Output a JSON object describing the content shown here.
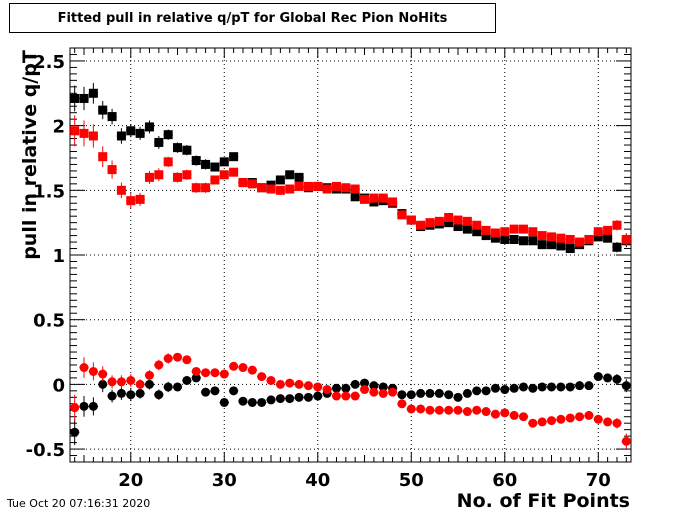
{
  "title": "Fitted pull in relative q/pT for Global Rec Pion NoHits",
  "datestamp": "Tue Oct 20 07:16:31 2020",
  "colors": {
    "series_black": "#000000",
    "series_red": "#ff0000"
  },
  "chart_data": {
    "type": "scatter",
    "title": "Fitted pull in relative q/pT for Global Rec Pion NoHits",
    "xlabel": "No. of Fit Points",
    "ylabel": "pull in relative q/pT",
    "xlim": [
      13.5,
      73.5
    ],
    "ylim": [
      -0.6,
      2.6
    ],
    "xticks": [
      20,
      30,
      40,
      50,
      60,
      70
    ],
    "yticks": [
      -0.5,
      0,
      0.5,
      1,
      1.5,
      2,
      2.5
    ],
    "grid": true,
    "x": [
      14,
      15,
      16,
      17,
      18,
      19,
      20,
      21,
      22,
      23,
      24,
      25,
      26,
      27,
      28,
      29,
      30,
      31,
      32,
      33,
      34,
      35,
      36,
      37,
      38,
      39,
      40,
      41,
      42,
      43,
      44,
      45,
      46,
      47,
      48,
      49,
      50,
      51,
      52,
      53,
      54,
      55,
      56,
      57,
      58,
      59,
      60,
      61,
      62,
      63,
      64,
      65,
      66,
      67,
      68,
      69,
      70,
      71,
      72,
      73
    ],
    "series": [
      {
        "color": "#000000",
        "marker": "square",
        "values": [
          2.21,
          2.21,
          2.25,
          2.12,
          2.07,
          1.92,
          1.96,
          1.94,
          1.99,
          1.87,
          1.93,
          1.83,
          1.81,
          1.73,
          1.7,
          1.68,
          1.72,
          1.76,
          1.56,
          1.56,
          1.52,
          1.54,
          1.58,
          1.62,
          1.6,
          1.52,
          1.53,
          1.52,
          1.51,
          1.51,
          1.45,
          1.44,
          1.41,
          1.42,
          1.4,
          1.32,
          1.27,
          1.22,
          1.23,
          1.24,
          1.25,
          1.22,
          1.2,
          1.18,
          1.15,
          1.13,
          1.12,
          1.12,
          1.11,
          1.11,
          1.08,
          1.08,
          1.07,
          1.05,
          1.08,
          1.11,
          1.14,
          1.13,
          1.06,
          1.11
        ],
        "errors": [
          0.1,
          0.09,
          0.08,
          0.07,
          0.06,
          0.06,
          0.05,
          0.05,
          0.05,
          0.05,
          0.04,
          0.04,
          0.04,
          0.04,
          0.04,
          0.03,
          0.03,
          0.03,
          0.03,
          0.03,
          0.03,
          0.03,
          0.03,
          0.03,
          0.03,
          0.02,
          0.02,
          0.02,
          0.02,
          0.02,
          0.02,
          0.02,
          0.02,
          0.02,
          0.02,
          0.02,
          0.02,
          0.02,
          0.02,
          0.02,
          0.02,
          0.02,
          0.02,
          0.02,
          0.02,
          0.02,
          0.02,
          0.02,
          0.02,
          0.02,
          0.02,
          0.02,
          0.02,
          0.02,
          0.02,
          0.02,
          0.03,
          0.03,
          0.04,
          0.05
        ]
      },
      {
        "color": "#ff0000",
        "marker": "square",
        "values": [
          1.96,
          1.94,
          1.92,
          1.76,
          1.66,
          1.5,
          1.42,
          1.43,
          1.6,
          1.62,
          1.72,
          1.6,
          1.62,
          1.52,
          1.52,
          1.58,
          1.62,
          1.64,
          1.56,
          1.55,
          1.52,
          1.51,
          1.5,
          1.51,
          1.53,
          1.53,
          1.53,
          1.51,
          1.53,
          1.52,
          1.51,
          1.43,
          1.44,
          1.44,
          1.41,
          1.31,
          1.27,
          1.23,
          1.25,
          1.26,
          1.29,
          1.27,
          1.26,
          1.23,
          1.19,
          1.17,
          1.18,
          1.2,
          1.2,
          1.18,
          1.15,
          1.14,
          1.13,
          1.12,
          1.1,
          1.12,
          1.18,
          1.19,
          1.23,
          1.12
        ],
        "errors": [
          0.12,
          0.1,
          0.09,
          0.08,
          0.07,
          0.06,
          0.06,
          0.05,
          0.05,
          0.05,
          0.04,
          0.04,
          0.04,
          0.04,
          0.04,
          0.03,
          0.03,
          0.03,
          0.03,
          0.03,
          0.03,
          0.03,
          0.03,
          0.03,
          0.03,
          0.02,
          0.02,
          0.02,
          0.02,
          0.02,
          0.02,
          0.02,
          0.02,
          0.02,
          0.02,
          0.02,
          0.02,
          0.02,
          0.02,
          0.02,
          0.02,
          0.02,
          0.02,
          0.02,
          0.02,
          0.02,
          0.02,
          0.02,
          0.02,
          0.02,
          0.02,
          0.02,
          0.02,
          0.02,
          0.02,
          0.02,
          0.03,
          0.03,
          0.04,
          0.05
        ]
      },
      {
        "color": "#000000",
        "marker": "circle",
        "values": [
          -0.37,
          -0.17,
          -0.17,
          0.0,
          -0.09,
          -0.07,
          -0.08,
          -0.07,
          0.0,
          -0.08,
          -0.02,
          -0.02,
          0.03,
          0.05,
          -0.06,
          -0.05,
          -0.14,
          -0.05,
          -0.13,
          -0.14,
          -0.14,
          -0.12,
          -0.11,
          -0.11,
          -0.1,
          -0.1,
          -0.09,
          -0.07,
          -0.03,
          -0.03,
          0.0,
          0.01,
          -0.01,
          -0.02,
          -0.03,
          -0.08,
          -0.08,
          -0.07,
          -0.07,
          -0.07,
          -0.08,
          -0.1,
          -0.07,
          -0.05,
          -0.05,
          -0.03,
          -0.04,
          -0.03,
          -0.02,
          -0.03,
          -0.02,
          -0.02,
          -0.02,
          -0.02,
          -0.01,
          -0.01,
          0.06,
          0.05,
          0.04,
          -0.01
        ],
        "errors": [
          0.1,
          0.08,
          0.07,
          0.06,
          0.05,
          0.05,
          0.05,
          0.04,
          0.04,
          0.04,
          0.04,
          0.03,
          0.03,
          0.03,
          0.03,
          0.03,
          0.03,
          0.03,
          0.03,
          0.02,
          0.02,
          0.02,
          0.02,
          0.02,
          0.02,
          0.02,
          0.02,
          0.02,
          0.02,
          0.02,
          0.02,
          0.02,
          0.02,
          0.02,
          0.02,
          0.02,
          0.02,
          0.02,
          0.02,
          0.02,
          0.02,
          0.02,
          0.02,
          0.02,
          0.02,
          0.02,
          0.02,
          0.02,
          0.02,
          0.02,
          0.02,
          0.02,
          0.02,
          0.02,
          0.02,
          0.02,
          0.03,
          0.03,
          0.04,
          0.05
        ]
      },
      {
        "color": "#ff0000",
        "marker": "circle",
        "values": [
          -0.18,
          0.13,
          0.1,
          0.08,
          0.02,
          0.02,
          0.03,
          0.0,
          0.07,
          0.15,
          0.2,
          0.21,
          0.19,
          0.1,
          0.09,
          0.09,
          0.08,
          0.14,
          0.13,
          0.11,
          0.06,
          0.03,
          0.0,
          0.01,
          0.0,
          -0.01,
          -0.02,
          -0.04,
          -0.09,
          -0.09,
          -0.09,
          -0.04,
          -0.06,
          -0.07,
          -0.06,
          -0.15,
          -0.19,
          -0.19,
          -0.2,
          -0.2,
          -0.2,
          -0.2,
          -0.21,
          -0.2,
          -0.21,
          -0.23,
          -0.22,
          -0.24,
          -0.25,
          -0.3,
          -0.29,
          -0.28,
          -0.27,
          -0.26,
          -0.25,
          -0.24,
          -0.27,
          -0.29,
          -0.3,
          -0.44
        ],
        "errors": [
          0.1,
          0.08,
          0.07,
          0.06,
          0.05,
          0.05,
          0.05,
          0.04,
          0.04,
          0.04,
          0.04,
          0.03,
          0.03,
          0.03,
          0.03,
          0.03,
          0.03,
          0.03,
          0.03,
          0.02,
          0.02,
          0.02,
          0.02,
          0.02,
          0.02,
          0.02,
          0.02,
          0.02,
          0.02,
          0.02,
          0.02,
          0.02,
          0.02,
          0.02,
          0.02,
          0.02,
          0.02,
          0.02,
          0.02,
          0.02,
          0.02,
          0.02,
          0.02,
          0.02,
          0.02,
          0.02,
          0.02,
          0.02,
          0.02,
          0.02,
          0.02,
          0.02,
          0.02,
          0.02,
          0.02,
          0.02,
          0.03,
          0.03,
          0.04,
          0.06
        ]
      }
    ]
  }
}
